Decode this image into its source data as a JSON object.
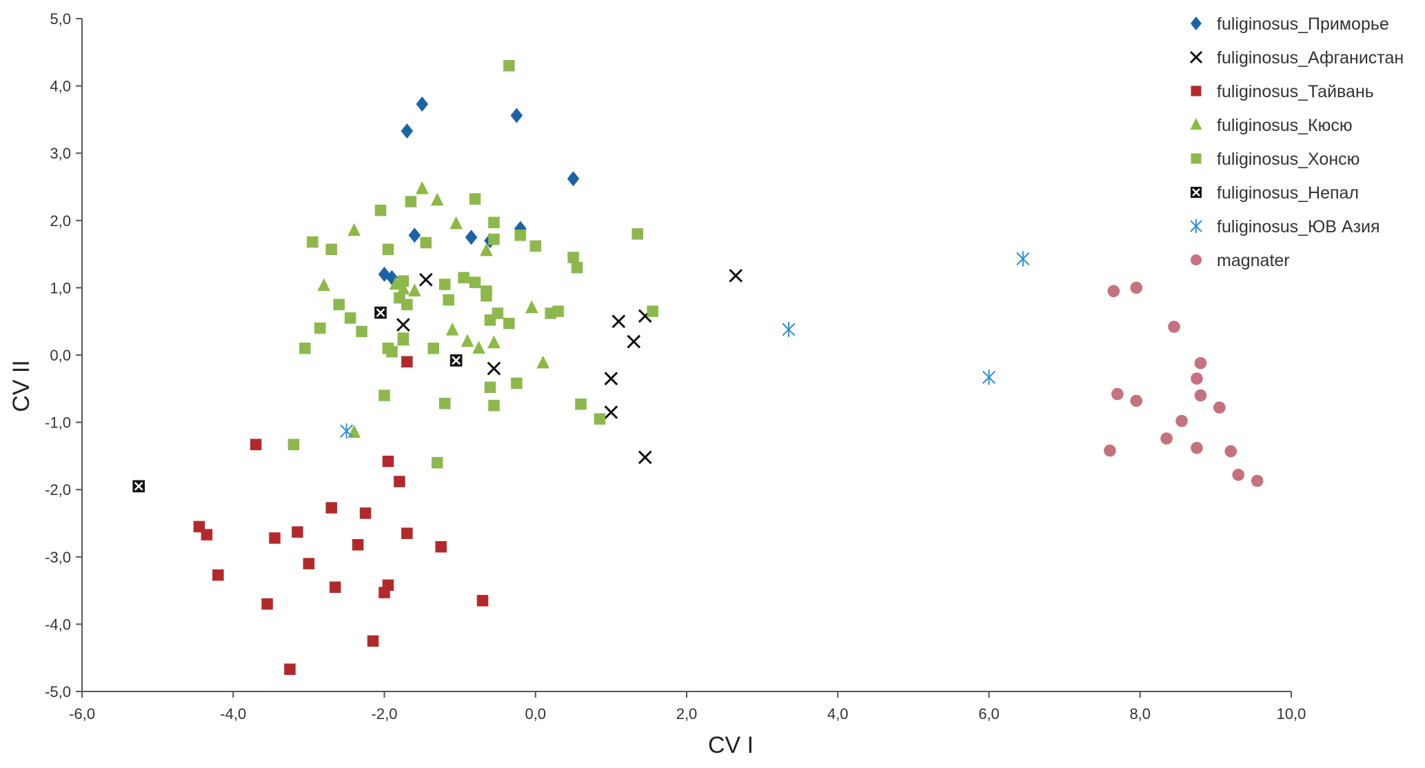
{
  "chart_data": {
    "type": "scatter",
    "xlabel": "CV I",
    "ylabel": "CV II",
    "xlim": [
      -6,
      10
    ],
    "ylim": [
      -5,
      5
    ],
    "xticks": [
      "-6,0",
      "-4,0",
      "-2,0",
      "0,0",
      "2,0",
      "4,0",
      "6,0",
      "8,0",
      "10,0"
    ],
    "yticks": [
      "5,0",
      "4,0",
      "3,0",
      "2,0",
      "1,0",
      "0,0",
      "-1,0",
      "-2,0",
      "-3,0",
      "-4,0",
      "-5,0"
    ],
    "legend_position": "top-right",
    "series": [
      {
        "name": "fuliginosus_Приморье",
        "marker": "diamond",
        "color": "#1b63a6",
        "points": [
          [
            -1.7,
            3.33
          ],
          [
            -1.5,
            3.73
          ],
          [
            -0.25,
            3.56
          ],
          [
            0.5,
            2.62
          ],
          [
            -1.6,
            1.78
          ],
          [
            -0.85,
            1.75
          ],
          [
            -0.2,
            1.88
          ],
          [
            -0.6,
            1.7
          ],
          [
            -2.0,
            1.2
          ],
          [
            -1.9,
            1.15
          ]
        ]
      },
      {
        "name": "fuliginosus_Афганистан",
        "marker": "x",
        "color": "#111111",
        "points": [
          [
            -1.45,
            1.12
          ],
          [
            -1.75,
            0.45
          ],
          [
            -0.55,
            -0.2
          ],
          [
            2.65,
            1.18
          ],
          [
            1.1,
            0.5
          ],
          [
            1.45,
            0.58
          ],
          [
            1.3,
            0.2
          ],
          [
            1.0,
            -0.35
          ],
          [
            1.0,
            -0.85
          ],
          [
            1.45,
            -1.52
          ]
        ]
      },
      {
        "name": "fuliginosus_Тайвань",
        "marker": "square",
        "color": "#b3292b",
        "points": [
          [
            -1.7,
            -0.1
          ],
          [
            -3.7,
            -1.33
          ],
          [
            -1.95,
            -1.58
          ],
          [
            -1.8,
            -1.88
          ],
          [
            -2.7,
            -2.27
          ],
          [
            -2.25,
            -2.35
          ],
          [
            -4.45,
            -2.55
          ],
          [
            -4.35,
            -2.67
          ],
          [
            -3.45,
            -2.72
          ],
          [
            -3.15,
            -2.63
          ],
          [
            -1.7,
            -2.65
          ],
          [
            -1.25,
            -2.85
          ],
          [
            -2.35,
            -2.82
          ],
          [
            -4.2,
            -3.27
          ],
          [
            -3.0,
            -3.1
          ],
          [
            -2.65,
            -3.45
          ],
          [
            -1.95,
            -3.42
          ],
          [
            -2.0,
            -3.53
          ],
          [
            -3.55,
            -3.7
          ],
          [
            -0.7,
            -3.65
          ],
          [
            -2.15,
            -4.25
          ],
          [
            -3.25,
            -4.67
          ]
        ]
      },
      {
        "name": "fuliginosus_Кюсю",
        "marker": "triangle",
        "color": "#8cba45",
        "points": [
          [
            -1.5,
            2.47
          ],
          [
            -1.3,
            2.3
          ],
          [
            -1.05,
            1.95
          ],
          [
            -2.4,
            1.85
          ],
          [
            -0.65,
            1.55
          ],
          [
            -2.8,
            1.03
          ],
          [
            -1.85,
            1.05
          ],
          [
            -1.75,
            0.98
          ],
          [
            -1.6,
            0.95
          ],
          [
            -0.05,
            0.7
          ],
          [
            -1.1,
            0.37
          ],
          [
            -0.9,
            0.2
          ],
          [
            -0.75,
            0.1
          ],
          [
            -0.55,
            0.18
          ],
          [
            0.1,
            -0.12
          ],
          [
            -2.4,
            -1.15
          ],
          [
            -1.75,
            0.22
          ]
        ]
      },
      {
        "name": "fuliginosus_Хонсю",
        "marker": "square",
        "color": "#8db84c",
        "points": [
          [
            -0.35,
            4.3
          ],
          [
            -2.05,
            2.15
          ],
          [
            -1.65,
            2.28
          ],
          [
            -0.8,
            2.32
          ],
          [
            -2.95,
            1.68
          ],
          [
            -2.7,
            1.57
          ],
          [
            -1.95,
            1.57
          ],
          [
            -1.45,
            1.67
          ],
          [
            -0.55,
            1.97
          ],
          [
            -0.55,
            1.72
          ],
          [
            -0.2,
            1.78
          ],
          [
            0.0,
            1.62
          ],
          [
            1.35,
            1.8
          ],
          [
            0.5,
            1.45
          ],
          [
            0.55,
            1.3
          ],
          [
            -1.75,
            1.1
          ],
          [
            -1.2,
            1.05
          ],
          [
            -0.95,
            1.15
          ],
          [
            -0.8,
            1.08
          ],
          [
            -0.65,
            0.95
          ],
          [
            -0.65,
            0.88
          ],
          [
            -1.15,
            0.82
          ],
          [
            -1.8,
            0.85
          ],
          [
            -1.7,
            0.75
          ],
          [
            -2.6,
            0.75
          ],
          [
            -2.85,
            0.4
          ],
          [
            -2.45,
            0.55
          ],
          [
            -2.3,
            0.35
          ],
          [
            -0.5,
            0.62
          ],
          [
            -0.6,
            0.52
          ],
          [
            -0.35,
            0.47
          ],
          [
            0.2,
            0.62
          ],
          [
            0.3,
            0.65
          ],
          [
            1.55,
            0.65
          ],
          [
            -3.05,
            0.1
          ],
          [
            -1.95,
            0.1
          ],
          [
            -1.9,
            0.05
          ],
          [
            -1.75,
            0.25
          ],
          [
            -1.35,
            0.1
          ],
          [
            -0.6,
            -0.48
          ],
          [
            -0.25,
            -0.42
          ],
          [
            -2.0,
            -0.6
          ],
          [
            -1.2,
            -0.72
          ],
          [
            -0.55,
            -0.75
          ],
          [
            0.6,
            -0.73
          ],
          [
            0.85,
            -0.95
          ],
          [
            -3.2,
            -1.33
          ],
          [
            -1.3,
            -1.6
          ]
        ]
      },
      {
        "name": "fuliginosus_Непал",
        "marker": "boxed-x",
        "color": "#111111",
        "points": [
          [
            -2.05,
            0.63
          ],
          [
            -1.05,
            -0.08
          ],
          [
            -5.25,
            -1.95
          ]
        ]
      },
      {
        "name": "fuliginosus_ЮВ Азия",
        "marker": "asterisk",
        "color": "#2b8fd6",
        "points": [
          [
            -2.5,
            -1.13
          ],
          [
            3.35,
            0.38
          ],
          [
            6.45,
            1.43
          ],
          [
            6.0,
            -0.33
          ]
        ]
      },
      {
        "name": "magnater",
        "marker": "circle",
        "color": "#c6717e",
        "points": [
          [
            7.65,
            0.95
          ],
          [
            7.95,
            1.0
          ],
          [
            8.45,
            0.42
          ],
          [
            8.8,
            -0.12
          ],
          [
            8.75,
            -0.35
          ],
          [
            7.7,
            -0.58
          ],
          [
            7.95,
            -0.68
          ],
          [
            8.8,
            -0.6
          ],
          [
            9.05,
            -0.78
          ],
          [
            8.55,
            -0.98
          ],
          [
            8.35,
            -1.24
          ],
          [
            8.75,
            -1.38
          ],
          [
            7.6,
            -1.42
          ],
          [
            9.2,
            -1.43
          ],
          [
            9.3,
            -1.78
          ],
          [
            9.55,
            -1.87
          ]
        ]
      }
    ]
  }
}
